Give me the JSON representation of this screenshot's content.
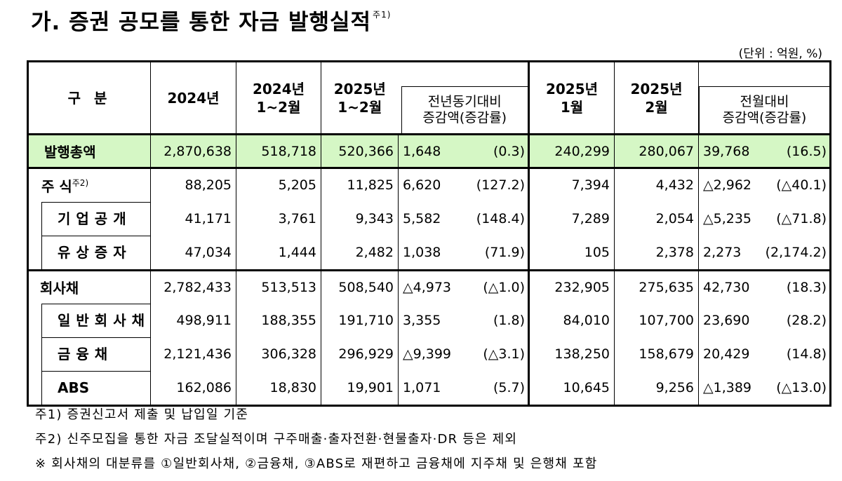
{
  "title": "가. 증권 공모를 통한 자금 발행실적",
  "title_note": "주1)",
  "unit": "(단위 : 억원, %)",
  "header": {
    "category": "구   분",
    "col_2024": "2024년",
    "col_2024_janfeb_1": "2024년",
    "col_2024_janfeb_2": "1~2월",
    "col_2025_janfeb_1": "2025년",
    "col_2025_janfeb_2": "1~2월",
    "yoy_1": "전년동기대비",
    "yoy_2": "증감액(증감률)",
    "col_2025_jan_1": "2025년",
    "col_2025_jan_2": "1월",
    "col_2025_feb_1": "2025년",
    "col_2025_feb_2": "2월",
    "mom_1": "전월대비",
    "mom_2": "증감액(증감률)"
  },
  "rows": [
    {
      "label": "발행총액",
      "note": "",
      "y2024": "2,870,638",
      "y2024jf": "518,718",
      "y2025jf": "520,366",
      "yoy_amt": "1,648",
      "yoy_pct": "(0.3)",
      "jan": "240,299",
      "feb": "280,067",
      "mom_amt": "39,768",
      "mom_pct": "(16.5)"
    },
    {
      "label": "주   식",
      "note": "주2)",
      "y2024": "88,205",
      "y2024jf": "5,205",
      "y2025jf": "11,825",
      "yoy_amt": "6,620",
      "yoy_pct": "(127.2)",
      "jan": "7,394",
      "feb": "4,432",
      "mom_amt": "△2,962",
      "mom_pct": "(△40.1)"
    },
    {
      "label": "기업공개",
      "note": "",
      "y2024": "41,171",
      "y2024jf": "3,761",
      "y2025jf": "9,343",
      "yoy_amt": "5,582",
      "yoy_pct": "(148.4)",
      "jan": "7,289",
      "feb": "2,054",
      "mom_amt": "△5,235",
      "mom_pct": "(△71.8)"
    },
    {
      "label": "유상증자",
      "note": "",
      "y2024": "47,034",
      "y2024jf": "1,444",
      "y2025jf": "2,482",
      "yoy_amt": "1,038",
      "yoy_pct": "(71.9)",
      "jan": "105",
      "feb": "2,378",
      "mom_amt": "2,273",
      "mom_pct": "(2,174.2)"
    },
    {
      "label": "회사채",
      "note": "",
      "y2024": "2,782,433",
      "y2024jf": "513,513",
      "y2025jf": "508,540",
      "yoy_amt": "△4,973",
      "yoy_pct": "(△1.0)",
      "jan": "232,905",
      "feb": "275,635",
      "mom_amt": "42,730",
      "mom_pct": "(18.3)"
    },
    {
      "label": "일반회사채",
      "note": "",
      "y2024": "498,911",
      "y2024jf": "188,355",
      "y2025jf": "191,710",
      "yoy_amt": "3,355",
      "yoy_pct": "(1.8)",
      "jan": "84,010",
      "feb": "107,700",
      "mom_amt": "23,690",
      "mom_pct": "(28.2)"
    },
    {
      "label": "금융채",
      "note": "",
      "y2024": "2,121,436",
      "y2024jf": "306,328",
      "y2025jf": "296,929",
      "yoy_amt": "△9,399",
      "yoy_pct": "(△3.1)",
      "jan": "138,250",
      "feb": "158,679",
      "mom_amt": "20,429",
      "mom_pct": "(14.8)"
    },
    {
      "label": "ABS",
      "note": "",
      "y2024": "162,086",
      "y2024jf": "18,830",
      "y2025jf": "19,901",
      "yoy_amt": "1,071",
      "yoy_pct": "(5.7)",
      "jan": "10,645",
      "feb": "9,256",
      "mom_amt": "△1,389",
      "mom_pct": "(△13.0)"
    }
  ],
  "notes": [
    "주1) 증권신고서 제출 및 납입일 기준",
    "주2) 신주모집을 통한 자금 조달실적이며 구주매출·출자전환·현물출자·DR 등은 제외",
    "※ 회사채의 대분류를 ①일반회사채, ②금융채, ③ABS로 재편하고 금융채에 지주채 및 은행채 포함"
  ]
}
